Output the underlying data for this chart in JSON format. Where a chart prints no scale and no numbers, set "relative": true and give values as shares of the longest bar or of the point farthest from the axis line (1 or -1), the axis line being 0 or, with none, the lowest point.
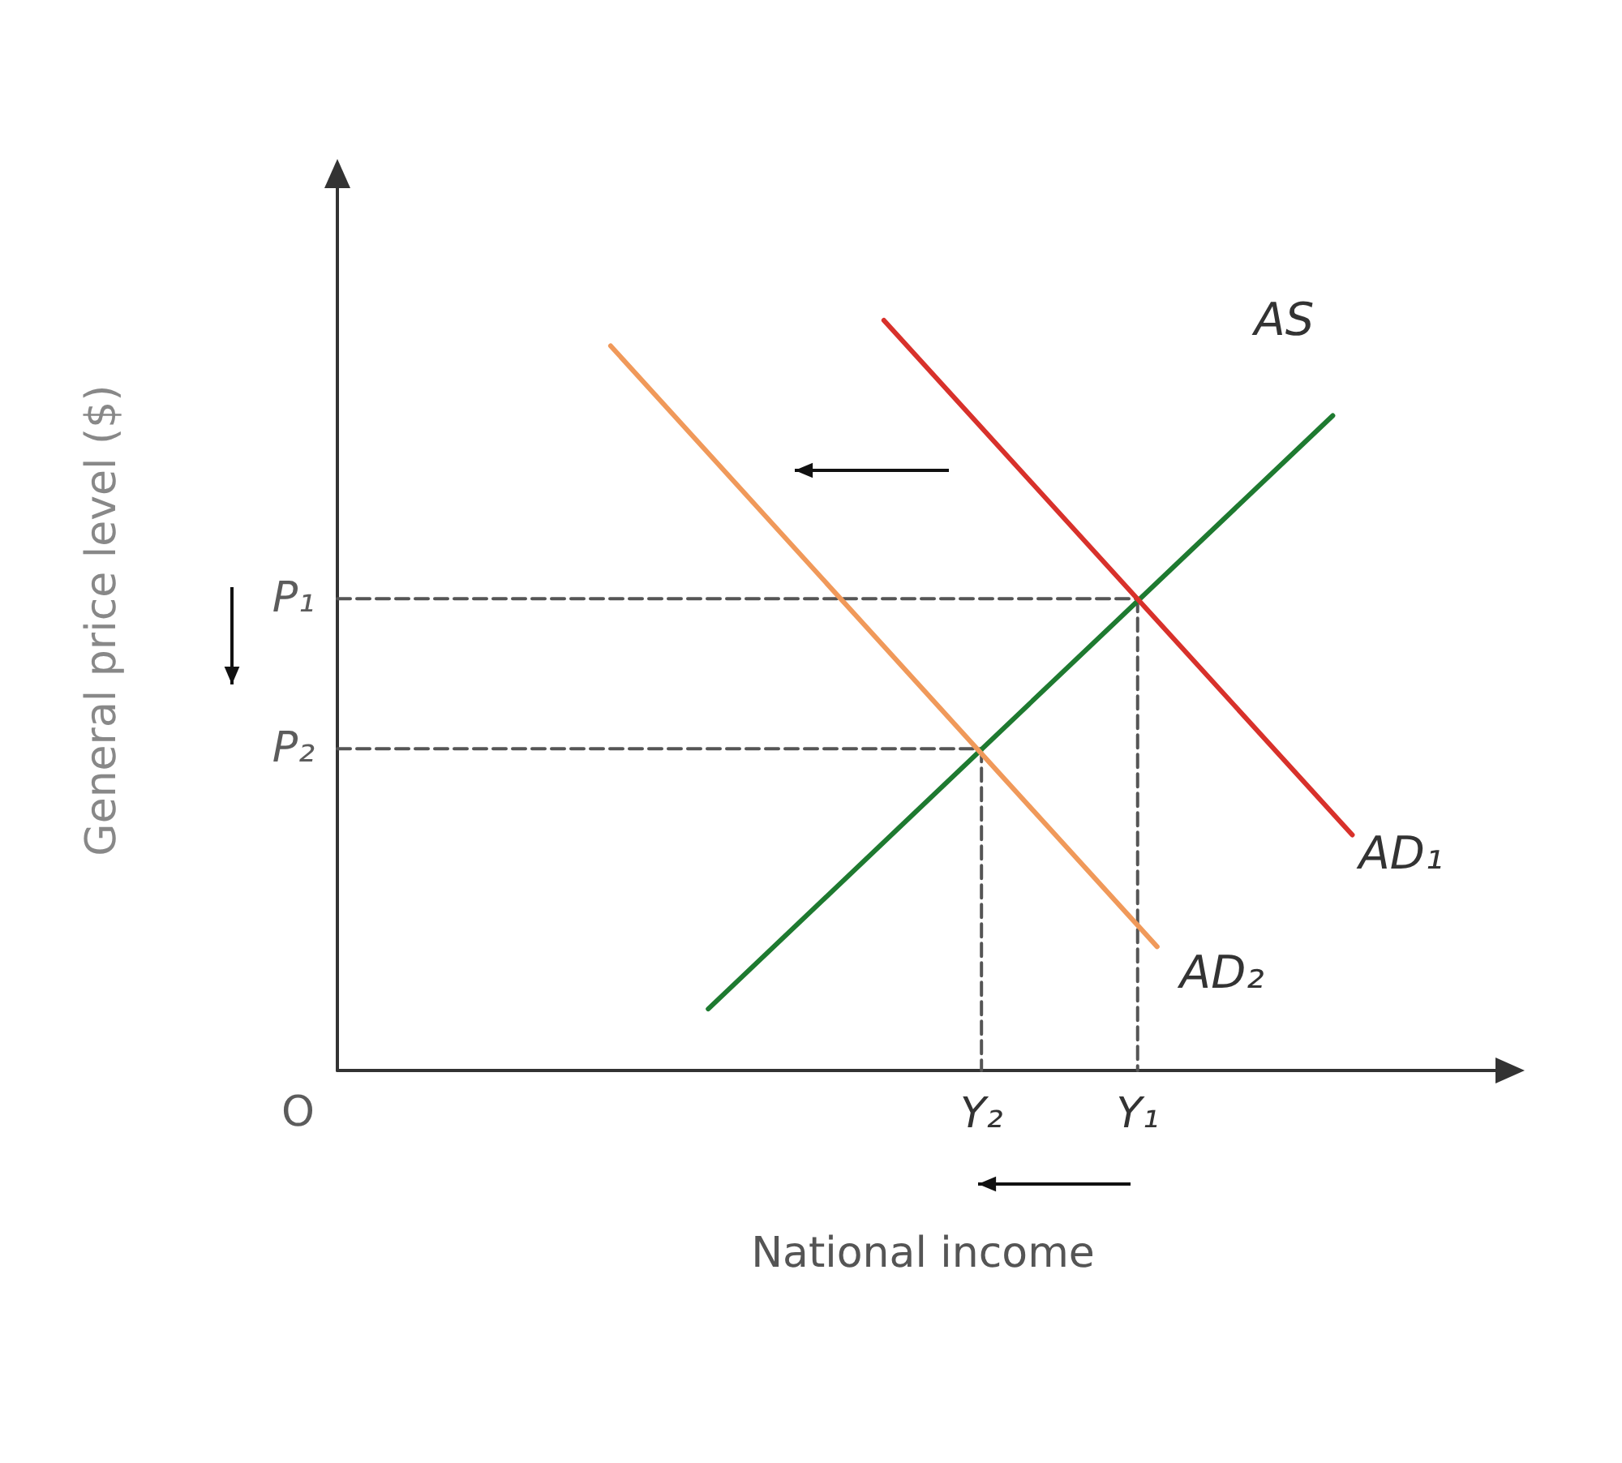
{
  "chart_data": {
    "type": "line",
    "relative": true,
    "xlabel": "National income",
    "ylabel": "General price level ($)",
    "grid": false,
    "legend": false,
    "marker": "none",
    "line_style": "solid",
    "categories": [
      null,
      null,
      null,
      null,
      null,
      null,
      null,
      null,
      null,
      null,
      null,
      null,
      null,
      null,
      null,
      null,
      null,
      null,
      null,
      null,
      null,
      null,
      null,
      null,
      null,
      null,
      null,
      null,
      null,
      null,
      null,
      null,
      null,
      "Y₂",
      null,
      null,
      null,
      null,
      null,
      null,
      null,
      "Y₁",
      null,
      null,
      null,
      null,
      null,
      null,
      null,
      null,
      null,
      null,
      null,
      null,
      null,
      null,
      null,
      null,
      null,
      null,
      null
    ],
    "series": [
      {
        "name": "AS",
        "color": "#1e7a30",
        "values": [
          null,
          null,
          null,
          null,
          null,
          null,
          null,
          null,
          null,
          null,
          null,
          null,
          null,
          null,
          null,
          null,
          null,
          null,
          null,
          0.082,
          null,
          null,
          null,
          null,
          null,
          null,
          null,
          null,
          null,
          null,
          null,
          null,
          null,
          null,
          null,
          null,
          null,
          null,
          null,
          null,
          null,
          null,
          null,
          null,
          null,
          null,
          null,
          null,
          null,
          null,
          null,
          0.873,
          null,
          null,
          null,
          null,
          null,
          null,
          null,
          null,
          null
        ]
      },
      {
        "name": "AD₁",
        "color": "#d8312b",
        "values": [
          null,
          null,
          null,
          null,
          null,
          null,
          null,
          null,
          null,
          null,
          null,
          null,
          null,
          null,
          null,
          null,
          null,
          null,
          null,
          null,
          null,
          null,
          null,
          null,
          null,
          null,
          null,
          null,
          1.0,
          null,
          null,
          null,
          null,
          null,
          null,
          null,
          null,
          null,
          null,
          null,
          null,
          null,
          null,
          null,
          null,
          null,
          null,
          null,
          null,
          null,
          null,
          null,
          0.314,
          null,
          null,
          null,
          null,
          null,
          null,
          null,
          null
        ]
      },
      {
        "name": "AD₂",
        "color": "#f0995a",
        "values": [
          null,
          null,
          null,
          null,
          null,
          null,
          null,
          null,
          null,
          null,
          null,
          null,
          null,
          null,
          0.966,
          null,
          null,
          null,
          null,
          null,
          null,
          null,
          null,
          null,
          null,
          null,
          null,
          null,
          null,
          null,
          null,
          null,
          null,
          null,
          null,
          null,
          null,
          null,
          null,
          null,
          null,
          null,
          0.165,
          null,
          null,
          null,
          null,
          null,
          null,
          null,
          null,
          null,
          null,
          null,
          null,
          null,
          null,
          null,
          null,
          null,
          null
        ]
      },
      {
        "color": "#555555",
        "line_style": "dashed",
        "values": [
          0.629,
          null,
          null,
          null,
          null,
          null,
          null,
          null,
          null,
          null,
          null,
          null,
          null,
          null,
          null,
          null,
          null,
          null,
          null,
          null,
          null,
          null,
          null,
          null,
          null,
          null,
          null,
          null,
          null,
          null,
          null,
          null,
          null,
          null,
          null,
          null,
          null,
          null,
          null,
          null,
          null,
          0.629,
          null,
          null,
          null,
          null,
          null,
          null,
          null,
          null,
          null,
          null,
          null,
          null,
          null,
          null,
          null,
          null,
          null,
          null,
          null
        ]
      },
      {
        "color": "#555555",
        "line_style": "dashed",
        "x": [
          "Y₁",
          "Y₁"
        ],
        "values": [
          0.629,
          0
        ]
      },
      {
        "color": "#555555",
        "line_style": "dashed",
        "values": [
          0.429,
          null,
          null,
          null,
          null,
          null,
          null,
          null,
          null,
          null,
          null,
          null,
          null,
          null,
          null,
          null,
          null,
          null,
          null,
          null,
          null,
          null,
          null,
          null,
          null,
          null,
          null,
          null,
          null,
          null,
          null,
          null,
          null,
          0.429,
          null,
          null,
          null,
          null,
          null,
          null,
          null,
          null,
          null,
          null,
          null,
          null,
          null,
          null,
          null,
          null,
          null,
          null,
          null,
          null,
          null,
          null,
          null,
          null,
          null,
          null,
          null
        ]
      },
      {
        "color": "#555555",
        "line_style": "dashed",
        "x": [
          "Y₂",
          "Y₂"
        ],
        "values": [
          0.429,
          0
        ]
      }
    ],
    "annotations": [
      "P₁",
      "P₂",
      "O"
    ]
  }
}
